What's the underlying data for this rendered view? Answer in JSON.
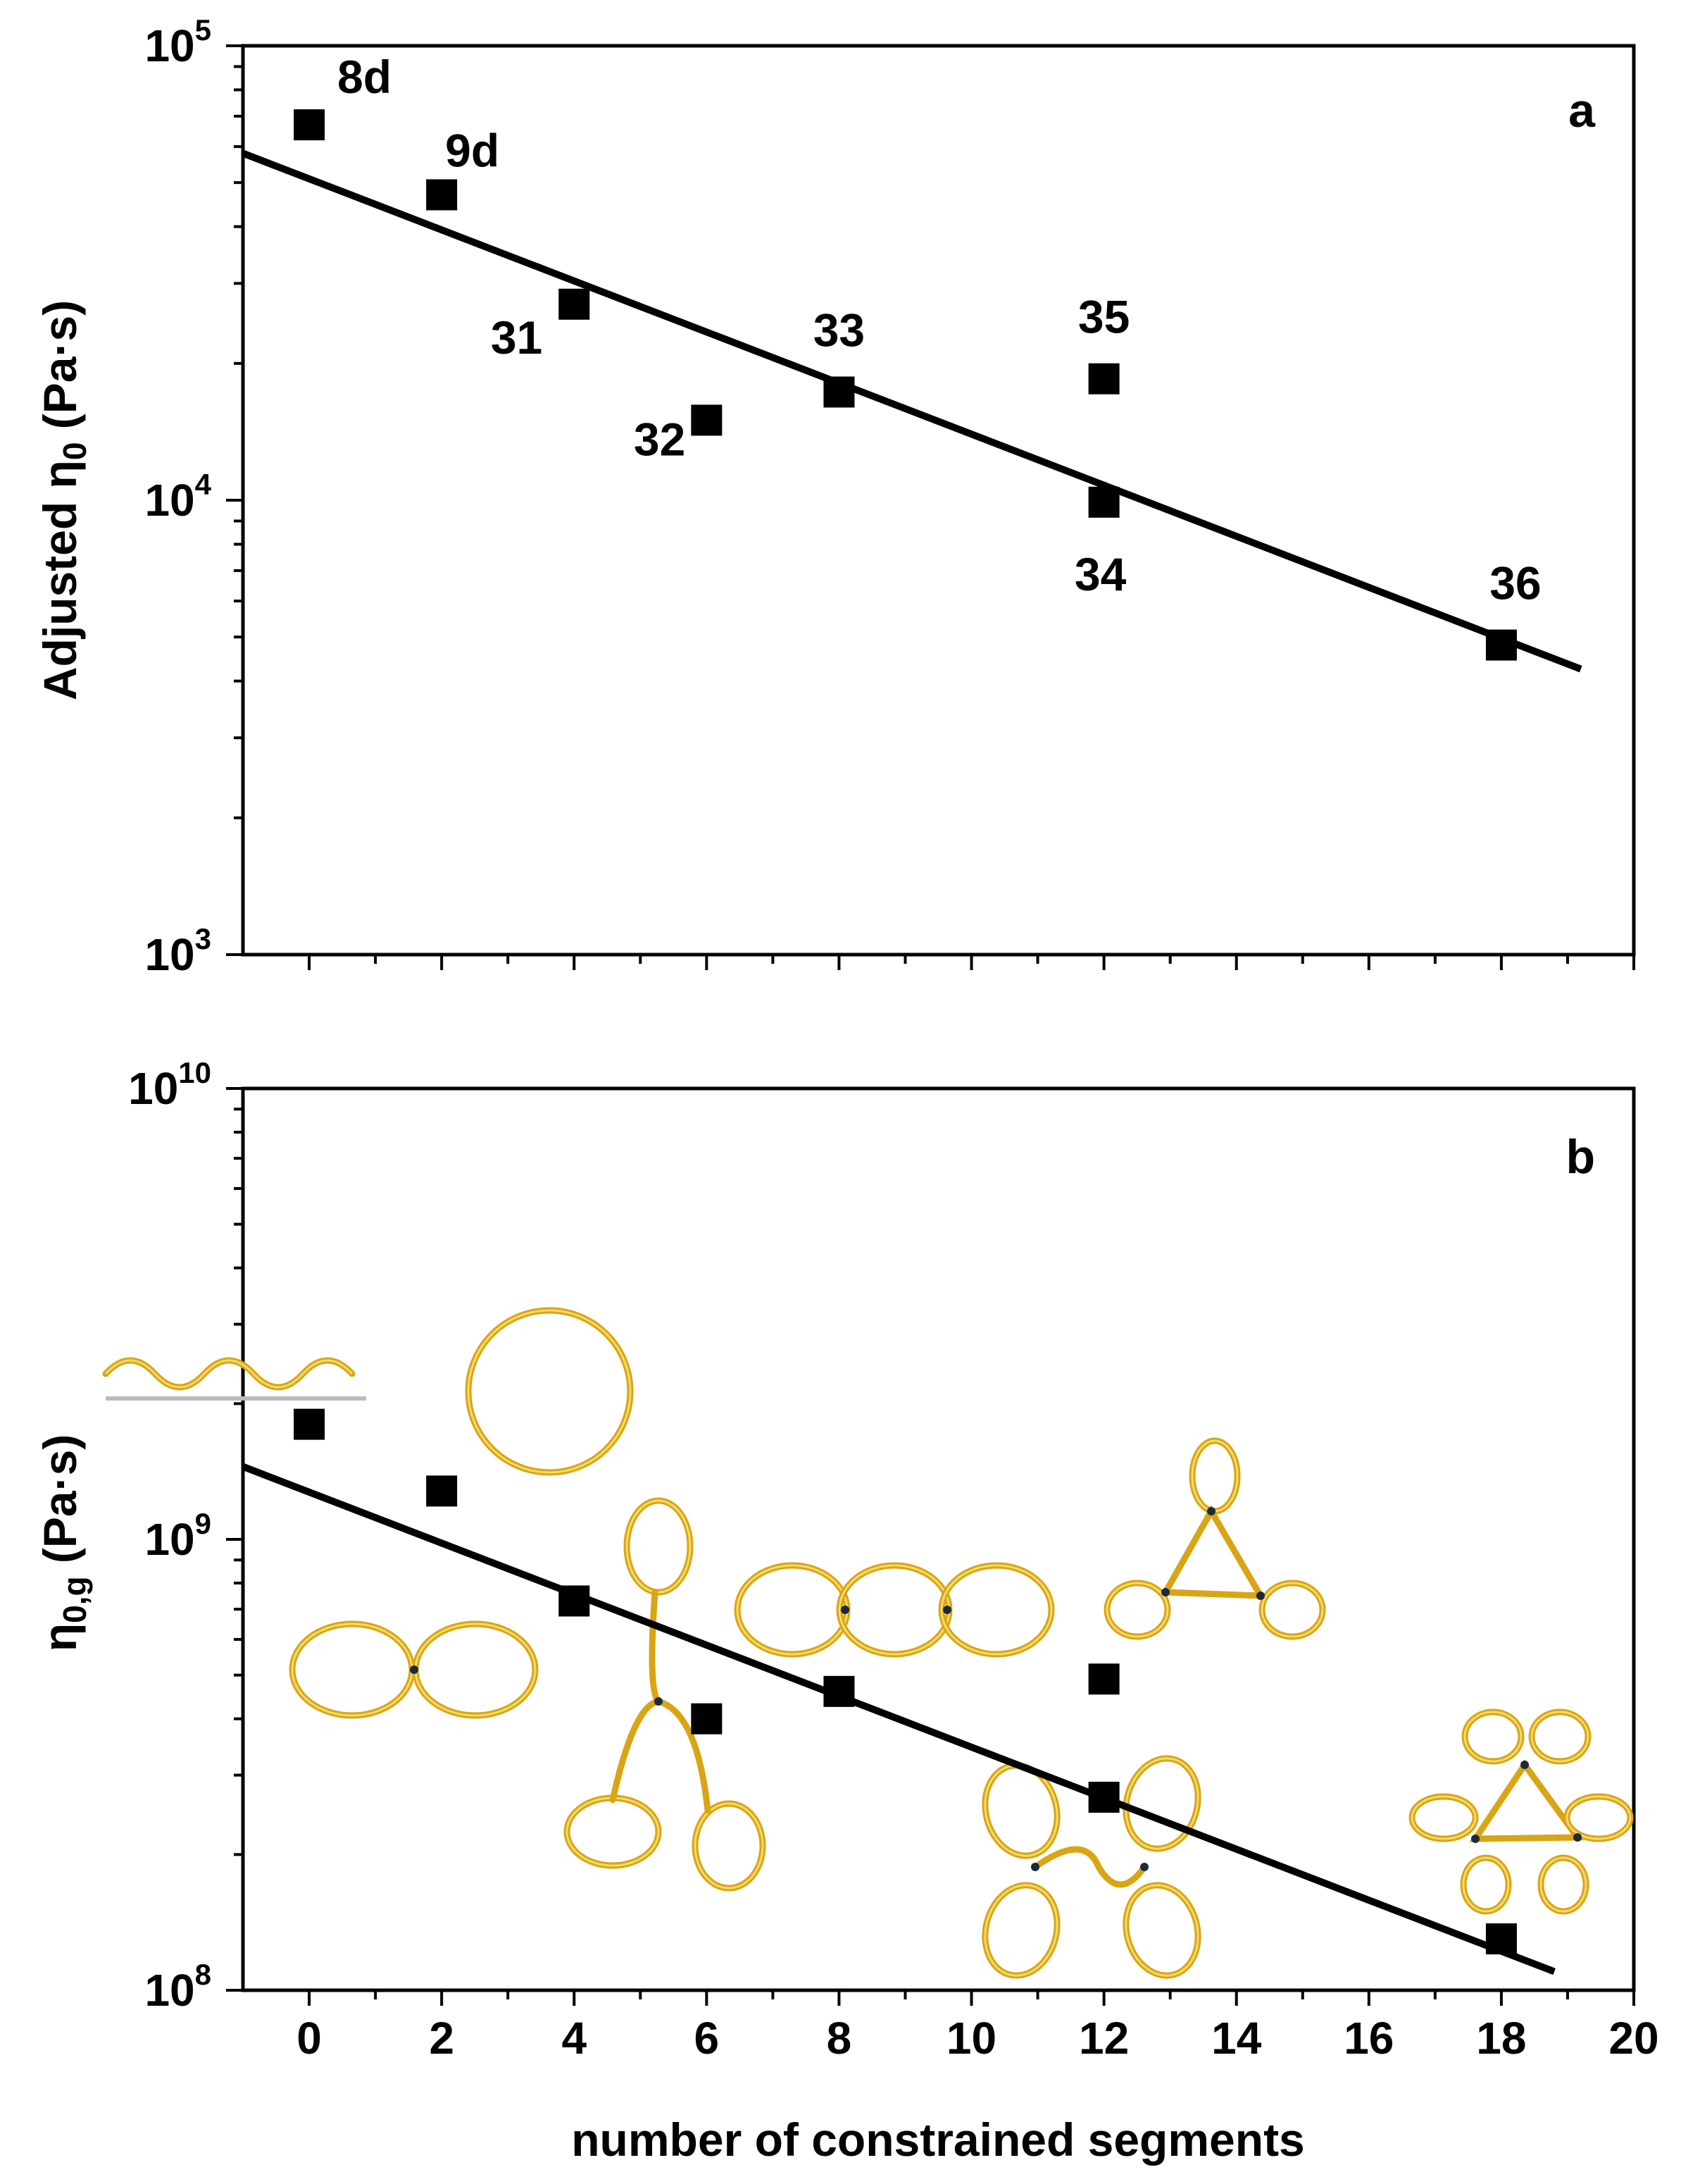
{
  "chart_data": [
    {
      "panel": "a",
      "type": "scatter",
      "title": "",
      "xlabel": "number of constrained segments",
      "ylabel_text": "Adjusted η",
      "ylabel_sub": "0",
      "ylabel_unit": " (Pa·s)",
      "yscale": "log",
      "ylim": [
        1000,
        100000
      ],
      "xlim": [
        -1,
        20
      ],
      "ytick_labels": [
        {
          "base": "10",
          "exp": "3"
        },
        {
          "base": "10",
          "exp": "4"
        },
        {
          "base": "10",
          "exp": "5"
        }
      ],
      "points": [
        {
          "x": 0,
          "y": 67000,
          "label": "8d"
        },
        {
          "x": 2,
          "y": 47000,
          "label": "9d"
        },
        {
          "x": 4,
          "y": 27000,
          "label": "31"
        },
        {
          "x": 6,
          "y": 15000,
          "label": "32"
        },
        {
          "x": 8,
          "y": 17300,
          "label": "33"
        },
        {
          "x": 12,
          "y": 18500,
          "label": "35"
        },
        {
          "x": 12,
          "y": 9900,
          "label": "34"
        },
        {
          "x": 18,
          "y": 4800,
          "label": "36"
        }
      ],
      "fit": {
        "x": [
          -1,
          19.2
        ],
        "y": [
          58000,
          4250
        ]
      }
    },
    {
      "panel": "b",
      "type": "scatter",
      "title": "",
      "xlabel": "number of constrained segments",
      "ylabel_text": "η",
      "ylabel_sub": "0,g",
      "ylabel_unit": " (Pa·s)",
      "yscale": "log",
      "ylim": [
        100000000,
        10000000000
      ],
      "xlim": [
        -1,
        20
      ],
      "xtick_labels": [
        "0",
        "2",
        "4",
        "6",
        "8",
        "10",
        "12",
        "14",
        "16",
        "18",
        "20"
      ],
      "ytick_labels": [
        {
          "base": "10",
          "exp": "8"
        },
        {
          "base": "10",
          "exp": "9"
        },
        {
          "base": "10",
          "exp": "10"
        }
      ],
      "points": [
        {
          "x": 0,
          "y": 1800000000
        },
        {
          "x": 2,
          "y": 1280000000
        },
        {
          "x": 4,
          "y": 730000000
        },
        {
          "x": 6,
          "y": 400000000
        },
        {
          "x": 8,
          "y": 460000000
        },
        {
          "x": 12,
          "y": 490000000
        },
        {
          "x": 12,
          "y": 268000000
        },
        {
          "x": 18,
          "y": 130000000
        }
      ],
      "fit": {
        "x": [
          -1,
          18.8
        ],
        "y": [
          1450000000,
          110000000
        ]
      },
      "topology_icons": [
        "linear chain",
        "ring",
        "figure-eight",
        "three-leaf clover",
        "double figure-eight",
        "tadpole triangle",
        "four-leaf double",
        "six-leaf triangle"
      ]
    }
  ],
  "colors": {
    "markers": "#000000",
    "fit_line": "#000000",
    "topology": "#d9a514"
  }
}
